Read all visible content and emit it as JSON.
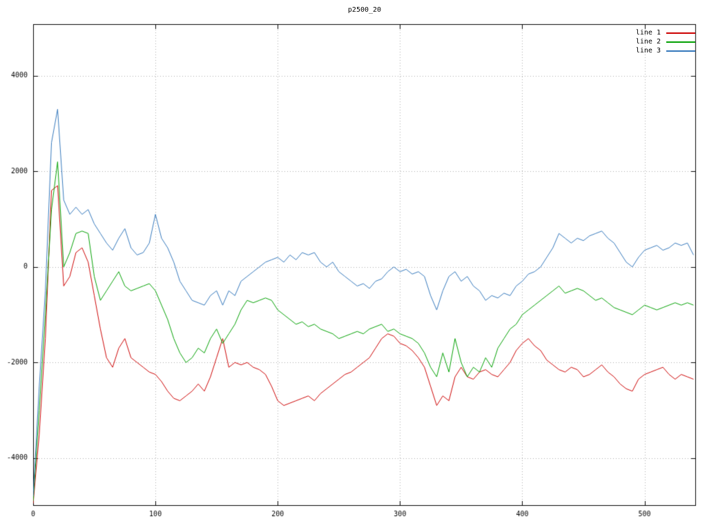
{
  "window": {
    "background": "#ffffff"
  },
  "chart_data": {
    "type": "line",
    "title": "p2500_20",
    "xlabel": "",
    "ylabel": "",
    "xlim": [
      0,
      542
    ],
    "ylim": [
      -5000,
      5080
    ],
    "xticks": [
      0,
      100,
      200,
      300,
      400,
      500
    ],
    "yticks": [
      -4000,
      -2000,
      0,
      2000,
      4000
    ],
    "grid": true,
    "grid_style": "dotted",
    "grid_color": "#a8a8a8",
    "border_color": "#000000",
    "legend_position": "top-right-inside",
    "x_start": 0,
    "x_step": 5,
    "series": [
      {
        "name": "line 1",
        "color": "#cc0000",
        "values": [
          -4950,
          -3500,
          -1500,
          1600,
          1700,
          -400,
          -200,
          300,
          400,
          100,
          -600,
          -1300,
          -1900,
          -2100,
          -1700,
          -1500,
          -1900,
          -2000,
          -2100,
          -2200,
          -2250,
          -2400,
          -2600,
          -2750,
          -2800,
          -2700,
          -2600,
          -2450,
          -2600,
          -2300,
          -1900,
          -1500,
          -2100,
          -2000,
          -2050,
          -2000,
          -2100,
          -2150,
          -2250,
          -2500,
          -2800,
          -2900,
          -2850,
          -2800,
          -2750,
          -2700,
          -2800,
          -2650,
          -2550,
          -2450,
          -2350,
          -2250,
          -2200,
          -2100,
          -2000,
          -1900,
          -1700,
          -1500,
          -1400,
          -1450,
          -1600,
          -1650,
          -1750,
          -1900,
          -2100,
          -2500,
          -2900,
          -2700,
          -2800,
          -2300,
          -2100,
          -2300,
          -2350,
          -2200,
          -2150,
          -2250,
          -2300,
          -2150,
          -2000,
          -1750,
          -1600,
          -1500,
          -1650,
          -1750,
          -1950,
          -2050,
          -2150,
          -2200,
          -2100,
          -2150,
          -2300,
          -2250,
          -2150,
          -2050,
          -2200,
          -2300,
          -2450,
          -2550,
          -2600,
          -2350,
          -2250,
          -2200,
          -2150,
          -2100,
          -2250,
          -2350,
          -2250,
          -2300,
          -2350
        ]
      },
      {
        "name": "line 2",
        "color": "#00a000",
        "values": [
          -4900,
          -3000,
          -1000,
          1200,
          2200,
          0,
          300,
          700,
          750,
          700,
          -200,
          -700,
          -500,
          -300,
          -100,
          -400,
          -500,
          -450,
          -400,
          -350,
          -500,
          -800,
          -1100,
          -1500,
          -1800,
          -2000,
          -1900,
          -1700,
          -1800,
          -1500,
          -1300,
          -1600,
          -1400,
          -1200,
          -900,
          -700,
          -750,
          -700,
          -650,
          -700,
          -900,
          -1000,
          -1100,
          -1200,
          -1150,
          -1250,
          -1200,
          -1300,
          -1350,
          -1400,
          -1500,
          -1450,
          -1400,
          -1350,
          -1400,
          -1300,
          -1250,
          -1200,
          -1350,
          -1300,
          -1400,
          -1450,
          -1500,
          -1600,
          -1800,
          -2100,
          -2300,
          -1800,
          -2200,
          -1500,
          -2000,
          -2300,
          -2100,
          -2200,
          -1900,
          -2100,
          -1700,
          -1500,
          -1300,
          -1200,
          -1000,
          -900,
          -800,
          -700,
          -600,
          -500,
          -400,
          -550,
          -500,
          -450,
          -500,
          -600,
          -700,
          -650,
          -750,
          -850,
          -900,
          -950,
          -1000,
          -900,
          -800,
          -850,
          -900,
          -850,
          -800,
          -750,
          -800,
          -750,
          -800
        ]
      },
      {
        "name": "line 3",
        "color": "#3377bb",
        "values": [
          -4800,
          -2500,
          -500,
          2600,
          3300,
          1400,
          1100,
          1250,
          1100,
          1200,
          900,
          700,
          500,
          350,
          600,
          800,
          400,
          250,
          300,
          500,
          1100,
          600,
          400,
          100,
          -300,
          -500,
          -700,
          -750,
          -800,
          -600,
          -500,
          -800,
          -500,
          -600,
          -300,
          -200,
          -100,
          0,
          100,
          150,
          200,
          100,
          250,
          150,
          300,
          250,
          300,
          100,
          0,
          100,
          -100,
          -200,
          -300,
          -400,
          -350,
          -450,
          -300,
          -250,
          -100,
          0,
          -100,
          -50,
          -150,
          -100,
          -200,
          -600,
          -900,
          -500,
          -200,
          -100,
          -300,
          -200,
          -400,
          -500,
          -700,
          -600,
          -650,
          -550,
          -600,
          -400,
          -300,
          -150,
          -100,
          0,
          200,
          400,
          700,
          600,
          500,
          600,
          550,
          650,
          700,
          750,
          600,
          500,
          300,
          100,
          0,
          200,
          350,
          400,
          450,
          350,
          400,
          500,
          450,
          500,
          250
        ]
      }
    ]
  }
}
